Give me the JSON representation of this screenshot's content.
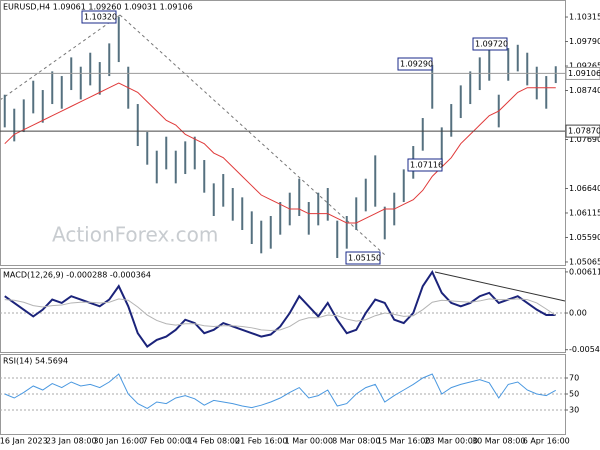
{
  "chart_data": [
    {
      "type": "range",
      "title": "EURUSD,H4  1.09061 1.09260 1.09031 1.09106",
      "watermark": "ActionForex.com",
      "color": "#55707f",
      "categories": [
        null,
        null,
        "16 Jan 2023",
        null,
        null,
        null,
        null,
        "23 Jan 08:00",
        null,
        null,
        null,
        null,
        "30 Jan 16:00",
        null,
        null,
        null,
        null,
        "7 Feb 00:00",
        null,
        null,
        null,
        null,
        "14 Feb 08:00",
        null,
        null,
        null,
        null,
        "21 Feb 16:00",
        null,
        null,
        null,
        null,
        "1 Mar 00:00",
        null,
        null,
        null,
        null,
        "8 Mar 08:00",
        null,
        null,
        null,
        null,
        "15 Mar 16:00",
        null,
        null,
        null,
        null,
        "23 Mar 00:00",
        null,
        null,
        null,
        null,
        "30 Mar 08:00",
        null,
        null,
        null,
        null,
        "6 Apr 16:00",
        null
      ],
      "high": [
        1.0865,
        1.0835,
        1.0855,
        1.0895,
        1.0875,
        1.0915,
        1.0905,
        1.0945,
        1.0925,
        1.0955,
        1.0935,
        1.0975,
        1.1032,
        1.0925,
        1.0845,
        1.0785,
        1.0745,
        1.0775,
        1.0745,
        1.0765,
        1.0775,
        1.0725,
        1.0675,
        1.0695,
        1.0665,
        1.0645,
        1.0615,
        1.0595,
        1.0605,
        1.0635,
        1.0655,
        1.0685,
        1.0635,
        1.0655,
        1.0665,
        1.0595,
        1.0605,
        1.0645,
        1.0685,
        1.0735,
        1.0625,
        1.0655,
        1.0705,
        1.0755,
        1.0815,
        1.0929,
        1.0795,
        1.0845,
        1.0885,
        1.0915,
        1.0945,
        1.0965,
        1.0865,
        1.0965,
        1.0972,
        1.0955,
        1.0925,
        1.0905,
        1.0926
      ],
      "low": [
        1.0795,
        1.0765,
        1.0785,
        1.0825,
        1.0805,
        1.0845,
        1.0835,
        1.0875,
        1.0855,
        1.0885,
        1.0865,
        1.0905,
        1.0935,
        1.0835,
        1.0755,
        1.0715,
        1.0675,
        1.0705,
        1.0675,
        1.0695,
        1.0705,
        1.0655,
        1.0605,
        1.0625,
        1.0595,
        1.0575,
        1.0545,
        1.0525,
        1.0535,
        1.0565,
        1.0585,
        1.0605,
        1.0565,
        1.0585,
        1.0595,
        1.0515,
        1.0535,
        1.0575,
        1.0615,
        1.0625,
        1.0555,
        1.0585,
        1.0635,
        1.0685,
        1.0745,
        1.0835,
        1.07116,
        1.0775,
        1.0815,
        1.0845,
        1.0875,
        1.0895,
        1.0795,
        1.0895,
        1.0915,
        1.0885,
        1.0855,
        1.0835,
        1.089
      ],
      "overlay": {
        "color": "#e03a3a",
        "values": [
          1.076,
          1.078,
          1.079,
          1.08,
          1.081,
          1.082,
          1.083,
          1.084,
          1.085,
          1.086,
          1.087,
          1.088,
          1.089,
          1.088,
          1.087,
          1.085,
          1.083,
          1.081,
          1.08,
          1.078,
          1.077,
          1.076,
          1.074,
          1.073,
          1.071,
          1.069,
          1.067,
          1.065,
          1.064,
          1.063,
          1.062,
          1.062,
          1.061,
          1.061,
          1.061,
          1.06,
          1.059,
          1.059,
          1.06,
          1.061,
          1.062,
          1.062,
          1.063,
          1.064,
          1.066,
          1.069,
          1.071,
          1.073,
          1.076,
          1.078,
          1.08,
          1.082,
          1.083,
          1.085,
          1.087,
          1.088,
          1.088,
          1.088,
          1.088
        ]
      },
      "ylim": [
        1.05,
        1.1068
      ],
      "yticks": [
        1.10315,
        {
          "value": 1.0979,
          "label": "1.09790"
        },
        1.09265,
        {
          "value": 1.0874,
          "label": "1.08740"
        },
        {
          "value": 1.0769,
          "label": "1.07690"
        },
        {
          "value": 1.0664,
          "label": "1.06640"
        },
        1.06115,
        {
          "value": 1.0559,
          "label": "1.05590"
        },
        1.05065
      ],
      "levels": [
        {
          "value": 1.09106,
          "label": "1.09106",
          "color": "#9a9a9a"
        },
        {
          "value": 1.0787,
          "label": "1.07870",
          "color": "#444444"
        }
      ],
      "annotations": [
        "1.10320",
        "1.09290",
        "1.09720",
        "1.07116",
        "1.05150"
      ]
    },
    {
      "type": "line",
      "title": "MACD(12,26,9) -0.000288 -0.000364",
      "grid": false,
      "series": [
        {
          "color": "#1b237a",
          "values": [
            0.0025,
            0.0015,
            0.0005,
            -0.0005,
            0.0005,
            0.002,
            0.0015,
            0.0025,
            0.002,
            0.0015,
            0.001,
            0.002,
            0.004,
            0.001,
            -0.003,
            -0.005,
            -0.004,
            -0.0035,
            -0.0025,
            -0.001,
            -0.0015,
            -0.003,
            -0.0025,
            -0.0015,
            -0.002,
            -0.0025,
            -0.003,
            -0.0035,
            -0.0032,
            -0.002,
            0.0,
            0.0025,
            0.001,
            -0.0005,
            0.0015,
            -0.001,
            -0.003,
            -0.0025,
            0.0,
            0.002,
            0.0015,
            -0.001,
            -0.0015,
            0.0,
            0.004,
            0.0061,
            0.003,
            0.0015,
            0.001,
            0.0015,
            0.0025,
            0.003,
            0.0015,
            0.002,
            0.0025,
            0.0015,
            0.0005,
            -0.0003,
            -0.000288
          ]
        },
        {
          "color": "#b4b4b4",
          "values": [
            0.002,
            0.0019,
            0.0016,
            0.0011,
            0.0009,
            0.0011,
            0.0012,
            0.0015,
            0.0016,
            0.0016,
            0.0015,
            0.0016,
            0.0021,
            0.0019,
            0.0009,
            -0.0003,
            -0.0011,
            -0.0016,
            -0.0018,
            -0.0016,
            -0.0016,
            -0.0019,
            -0.002,
            -0.0019,
            -0.0019,
            -0.002,
            -0.0022,
            -0.0025,
            -0.0026,
            -0.0025,
            -0.002,
            -0.0011,
            -0.0007,
            -0.0007,
            -0.0003,
            -0.0004,
            -0.0009,
            -0.0012,
            -0.001,
            -0.0004,
            0.0,
            -0.0002,
            -0.0005,
            -0.0004,
            0.0005,
            0.0016,
            0.0019,
            0.0018,
            0.0017,
            0.0016,
            0.0018,
            0.0021,
            0.002,
            0.002,
            0.0021,
            0.002,
            0.0015,
            0.0006,
            -0.000364
          ]
        }
      ],
      "ylim": [
        -0.0058,
        0.0067
      ],
      "yticks": [
        0.006118,
        {
          "value": 0,
          "label": "0.00"
        },
        -0.005458
      ]
    },
    {
      "type": "line",
      "title": "RSI(14) 54.5694",
      "grid": true,
      "series": [
        {
          "color": "#4a98e0",
          "values": [
            50,
            45,
            52,
            60,
            55,
            63,
            58,
            65,
            60,
            62,
            58,
            65,
            75,
            50,
            38,
            32,
            40,
            38,
            45,
            48,
            44,
            36,
            42,
            40,
            38,
            35,
            33,
            36,
            40,
            45,
            52,
            58,
            45,
            48,
            55,
            35,
            38,
            50,
            58,
            62,
            40,
            48,
            55,
            62,
            70,
            75,
            50,
            58,
            62,
            65,
            68,
            64,
            45,
            62,
            65,
            55,
            50,
            48,
            54.5694
          ]
        }
      ],
      "ylim": [
        0,
        100
      ],
      "yticks": [
        70,
        50,
        30
      ]
    }
  ]
}
